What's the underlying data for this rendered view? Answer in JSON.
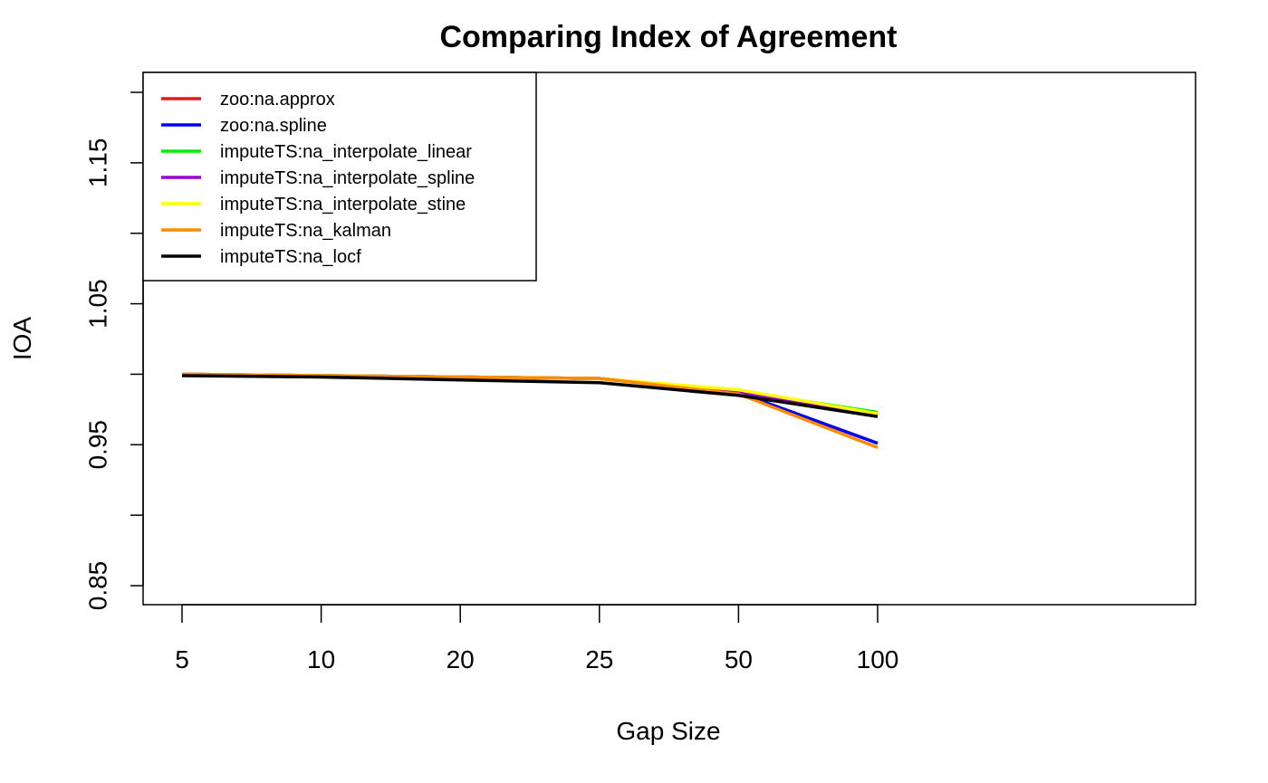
{
  "chart_data": {
    "type": "line",
    "title": "Comparing Index of Agreement",
    "xlabel": "Gap Size",
    "ylabel": "IOA",
    "categories": [
      "5",
      "10",
      "20",
      "25",
      "50",
      "100"
    ],
    "x_axis_kind": "categorical",
    "ylim": [
      0.85,
      1.2
    ],
    "yticks": [
      0.85,
      0.9,
      0.95,
      1.0,
      1.05,
      1.1,
      1.15,
      1.2
    ],
    "ytick_labels": [
      "0.85",
      "",
      "0.95",
      "",
      "1.05",
      "",
      "1.15",
      ""
    ],
    "grid": false,
    "legend_position": "top-left",
    "series": [
      {
        "name": "zoo:na.approx",
        "color": "#e41a1c",
        "values": [
          1.0,
          0.999,
          0.998,
          0.997,
          0.988,
          0.972
        ]
      },
      {
        "name": "zoo:na.spline",
        "color": "#0000ff",
        "values": [
          1.0,
          0.999,
          0.998,
          0.997,
          0.987,
          0.951
        ]
      },
      {
        "name": "imputeTS:na_interpolate_linear",
        "color": "#00ee00",
        "values": [
          1.0,
          0.999,
          0.998,
          0.997,
          0.988,
          0.973
        ]
      },
      {
        "name": "imputeTS:na_interpolate_spline",
        "color": "#9400d3",
        "values": [
          1.0,
          0.999,
          0.998,
          0.997,
          0.987,
          0.972
        ]
      },
      {
        "name": "imputeTS:na_interpolate_stine",
        "color": "#ffff00",
        "values": [
          1.0,
          0.999,
          0.998,
          0.997,
          0.989,
          0.972
        ]
      },
      {
        "name": "imputeTS:na_kalman",
        "color": "#ff8c00",
        "values": [
          1.0,
          0.999,
          0.998,
          0.997,
          0.986,
          0.948
        ]
      },
      {
        "name": "imputeTS:na_locf",
        "color": "#000000",
        "values": [
          0.999,
          0.998,
          0.996,
          0.994,
          0.985,
          0.97
        ]
      }
    ]
  }
}
